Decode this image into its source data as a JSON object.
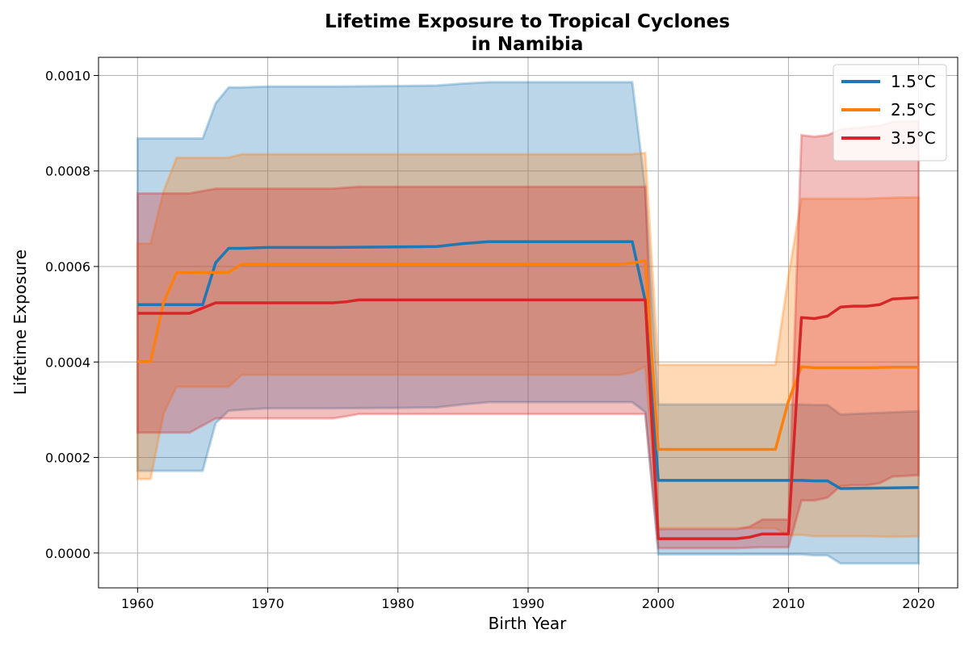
{
  "chart_data": {
    "type": "line",
    "title": "Lifetime Exposure to Tropical Cyclones",
    "subtitle": "in Namibia",
    "xlabel": "Birth Year",
    "ylabel": "Lifetime Exposure",
    "xlim": [
      1957,
      2023
    ],
    "ylim": [
      -7.3e-05,
      0.001038
    ],
    "x_ticks": [
      1960,
      1970,
      1980,
      1990,
      2000,
      2010,
      2020
    ],
    "y_ticks": [
      0.0,
      0.0002,
      0.0004,
      0.0006,
      0.0008,
      0.001
    ],
    "y_tick_labels": [
      "0.0000",
      "0.0002",
      "0.0004",
      "0.0006",
      "0.0008",
      "0.0010"
    ],
    "grid": true,
    "legend_position": "top-right",
    "series": [
      {
        "name": "1.5°C",
        "color": "#1f77b4",
        "x": [
          1960,
          1965,
          1966,
          1967,
          1968,
          1970,
          1975,
          1980,
          1983,
          1985,
          1987,
          1990,
          1995,
          1998,
          1999,
          2000,
          2005,
          2010,
          2011,
          2012,
          2013,
          2014,
          2020
        ],
        "values": [
          0.00052,
          0.00052,
          0.000608,
          0.000638,
          0.000638,
          0.00064,
          0.00064,
          0.000641,
          0.000642,
          0.000648,
          0.000652,
          0.000652,
          0.000652,
          0.000652,
          0.000528,
          0.000152,
          0.000152,
          0.000152,
          0.000152,
          0.000151,
          0.000151,
          0.000135,
          0.000137
        ],
        "upper": [
          0.000868,
          0.000868,
          0.000942,
          0.000975,
          0.000975,
          0.000977,
          0.000977,
          0.000978,
          0.000979,
          0.000983,
          0.000986,
          0.000986,
          0.000986,
          0.000986,
          0.000762,
          0.000311,
          0.000311,
          0.000311,
          0.000311,
          0.00031,
          0.00031,
          0.00029,
          0.000297
        ],
        "lower": [
          0.000172,
          0.000172,
          0.000272,
          0.000298,
          0.0003,
          0.000303,
          0.000303,
          0.000304,
          0.000305,
          0.000311,
          0.000316,
          0.000316,
          0.000316,
          0.000316,
          0.000295,
          -3e-06,
          -3e-06,
          -3e-06,
          -3e-06,
          -5e-06,
          -5e-06,
          -2.2e-05,
          -2.2e-05
        ]
      },
      {
        "name": "2.5°C",
        "color": "#ff7f0e",
        "x": [
          1960,
          1961,
          1962,
          1963,
          1967,
          1968,
          1975,
          1990,
          1997,
          1998,
          1999,
          2000,
          2005,
          2009,
          2010,
          2011,
          2012,
          2016,
          2018,
          2020
        ],
        "values": [
          0.000401,
          0.000401,
          0.000525,
          0.000587,
          0.000588,
          0.000605,
          0.000605,
          0.000605,
          0.000605,
          0.000607,
          0.000612,
          0.000217,
          0.000217,
          0.000217,
          0.000318,
          0.00039,
          0.000388,
          0.000388,
          0.000389,
          0.000389
        ],
        "upper": [
          0.000648,
          0.000648,
          0.000758,
          0.000828,
          0.000828,
          0.000835,
          0.000835,
          0.000835,
          0.000835,
          0.000835,
          0.000838,
          0.000394,
          0.000394,
          0.000394,
          0.00058,
          0.000742,
          0.000742,
          0.000742,
          0.000744,
          0.000745
        ],
        "lower": [
          0.000155,
          0.000155,
          0.000292,
          0.000348,
          0.000348,
          0.000373,
          0.000373,
          0.000373,
          0.000373,
          0.000378,
          0.00039,
          5.2e-05,
          5.2e-05,
          5.2e-05,
          3.7e-05,
          3.8e-05,
          3.5e-05,
          3.5e-05,
          3.4e-05,
          3.5e-05
        ]
      },
      {
        "name": "3.5°C",
        "color": "#d62728",
        "x": [
          1960,
          1964,
          1966,
          1970,
          1975,
          1976,
          1977,
          1985,
          1990,
          1998,
          1999,
          2000,
          2006,
          2007,
          2008,
          2010,
          2011,
          2012,
          2013,
          2014,
          2015,
          2016,
          2017,
          2018,
          2020
        ],
        "values": [
          0.000502,
          0.000502,
          0.000524,
          0.000524,
          0.000524,
          0.000526,
          0.00053,
          0.00053,
          0.00053,
          0.00053,
          0.00053,
          3e-05,
          3e-05,
          3.3e-05,
          4e-05,
          4e-05,
          0.000493,
          0.000491,
          0.000496,
          0.000515,
          0.000517,
          0.000517,
          0.00052,
          0.000532,
          0.000535
        ],
        "upper": [
          0.000753,
          0.000753,
          0.000763,
          0.000763,
          0.000763,
          0.000765,
          0.000767,
          0.000767,
          0.000767,
          0.000767,
          0.000767,
          5e-05,
          5e-05,
          5.5e-05,
          7e-05,
          7e-05,
          0.000875,
          0.000872,
          0.000875,
          0.000887,
          0.00089,
          0.000892,
          0.000895,
          0.000903,
          0.000905
        ],
        "lower": [
          0.000252,
          0.000252,
          0.000282,
          0.000282,
          0.000282,
          0.000286,
          0.000291,
          0.000291,
          0.000291,
          0.000291,
          0.000291,
          1e-05,
          1e-05,
          1.1e-05,
          1.2e-05,
          1.2e-05,
          0.00011,
          0.00011,
          0.000116,
          0.00014,
          0.000142,
          0.000142,
          0.000146,
          0.00016,
          0.000163
        ]
      }
    ]
  }
}
